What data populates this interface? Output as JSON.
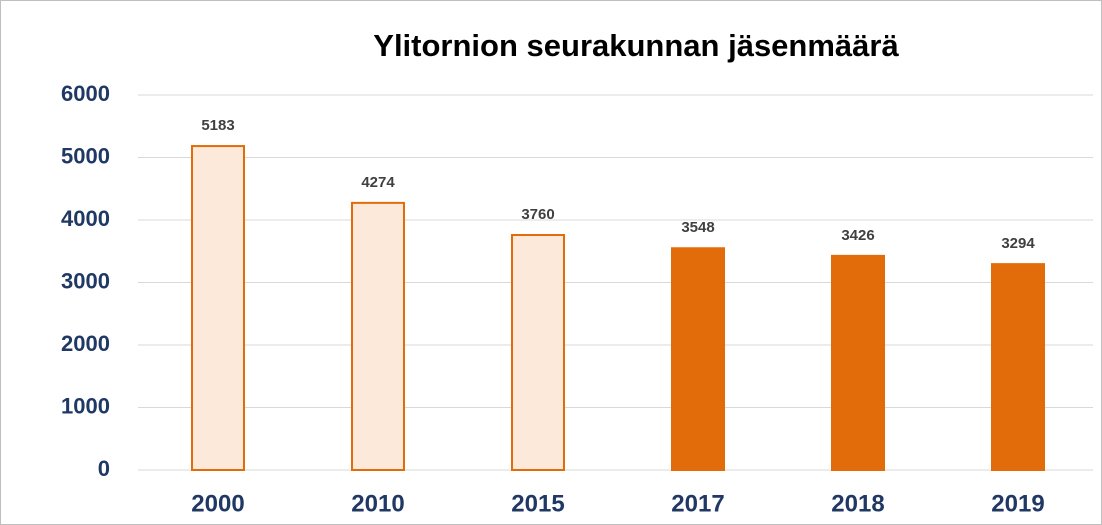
{
  "chart_data": {
    "type": "bar",
    "title": "Ylitornion seurakunnan jäsenmäärä",
    "categories": [
      "2000",
      "2010",
      "2015",
      "2017",
      "2018",
      "2019"
    ],
    "values": [
      5183,
      4274,
      3760,
      3548,
      3426,
      3294
    ],
    "colors": [
      "#fde9d9",
      "#fde9d9",
      "#fde9d9",
      "#e36c0a",
      "#e36c0a",
      "#e36c0a"
    ],
    "edge_color": "#e36c0a",
    "ylim": [
      0,
      6000
    ],
    "yticks": [
      0,
      1000,
      2000,
      3000,
      4000,
      5000,
      6000
    ],
    "grid": true
  }
}
